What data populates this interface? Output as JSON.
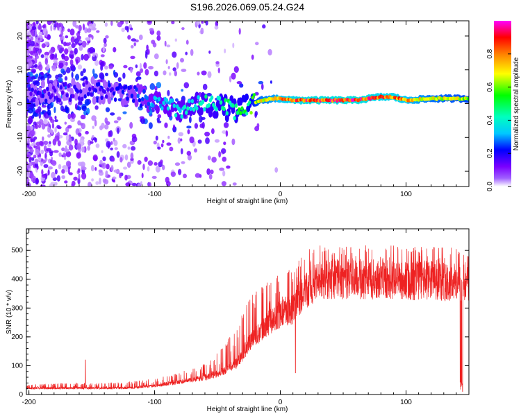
{
  "title": "S196.2026.069.05.24.G24",
  "chart_data": [
    {
      "type": "heatmap",
      "title": "S196.2026.069.05.24.G24",
      "xlabel": "Height of straight line (km)",
      "ylabel": "Frequency (Hz)",
      "xlim": [
        -202,
        150
      ],
      "ylim": [
        -24.5,
        24.5
      ],
      "xticks": [
        -200,
        -100,
        0,
        100
      ],
      "xtick_labels": [
        "-200",
        "-100",
        "0",
        "100"
      ],
      "yticks": [
        20,
        10,
        0,
        -10,
        -20
      ],
      "ytick_labels": [
        "20",
        "10",
        "0",
        "-10",
        "-20"
      ],
      "colorbar": {
        "label": "Normalized spectral amplitude",
        "range": [
          0,
          1
        ],
        "ticks": [
          0.0,
          0.2,
          0.4,
          0.6,
          0.8
        ],
        "tick_labels": [
          "0.0",
          "0.2",
          "0.4",
          "0.6",
          "0.8"
        ],
        "colormap": [
          "#ffffff",
          "#7a00ff",
          "#0000ff",
          "#00ffff",
          "#00ff00",
          "#ffff00",
          "#ff8000",
          "#ff0000",
          "#ff00ff"
        ]
      },
      "ridge": {
        "description": "spectral ridge frequency vs height",
        "x": [
          -200,
          -150,
          -120,
          -100,
          -80,
          -60,
          -45,
          -35,
          -25,
          -15,
          -5,
          0,
          10,
          30,
          60,
          80,
          90,
          100,
          120,
          150
        ],
        "frequency": [
          3,
          4,
          3,
          0,
          -2,
          0,
          -1,
          -2,
          -0.5,
          1,
          1.5,
          1.5,
          1,
          1,
          1,
          2,
          2,
          1,
          1.5,
          1.5
        ],
        "amplitude": [
          0.25,
          0.25,
          0.3,
          0.4,
          0.45,
          0.5,
          0.55,
          0.55,
          0.6,
          0.75,
          0.8,
          0.85,
          0.9,
          0.95,
          0.95,
          0.9,
          0.9,
          0.85,
          0.75,
          0.7
        ]
      }
    },
    {
      "type": "line",
      "xlabel": "Height of straight line (km)",
      "ylabel": "SNR (10 * v/v)",
      "xlim": [
        -202,
        150
      ],
      "ylim": [
        0,
        575
      ],
      "xticks": [
        -200,
        -100,
        0,
        100
      ],
      "xtick_labels": [
        "-200",
        "-100",
        "0",
        "100"
      ],
      "yticks": [
        0,
        100,
        200,
        300,
        400,
        500
      ],
      "ytick_labels": [
        "0",
        "100",
        "200",
        "300",
        "400",
        "500"
      ],
      "series": [
        {
          "name": "SNR",
          "color": "#ee2222",
          "x": [
            -202,
            -170,
            -140,
            -120,
            -100,
            -85,
            -75,
            -65,
            -55,
            -45,
            -35,
            -30,
            -25,
            -20,
            -15,
            -10,
            -5,
            0,
            5,
            10,
            15,
            20,
            30,
            40,
            60,
            80,
            100,
            120,
            140,
            145,
            150
          ],
          "base": [
            22,
            22,
            22,
            23,
            30,
            40,
            48,
            55,
            65,
            80,
            110,
            140,
            175,
            200,
            225,
            245,
            265,
            280,
            290,
            295,
            330,
            360,
            390,
            400,
            400,
            400,
            395,
            395,
            390,
            385,
            385
          ],
          "peak": [
            35,
            40,
            40,
            45,
            55,
            70,
            85,
            100,
            120,
            170,
            240,
            280,
            330,
            360,
            380,
            390,
            405,
            420,
            430,
            445,
            470,
            500,
            520,
            525,
            520,
            515,
            520,
            515,
            510,
            500,
            500
          ]
        }
      ],
      "annotations": [
        {
          "x": -155,
          "y": 120,
          "note": "isolated spike"
        },
        {
          "x": 12,
          "y": 75,
          "note": "dropout"
        },
        {
          "x": 145,
          "y": 10,
          "note": "dropout near end"
        }
      ]
    }
  ]
}
